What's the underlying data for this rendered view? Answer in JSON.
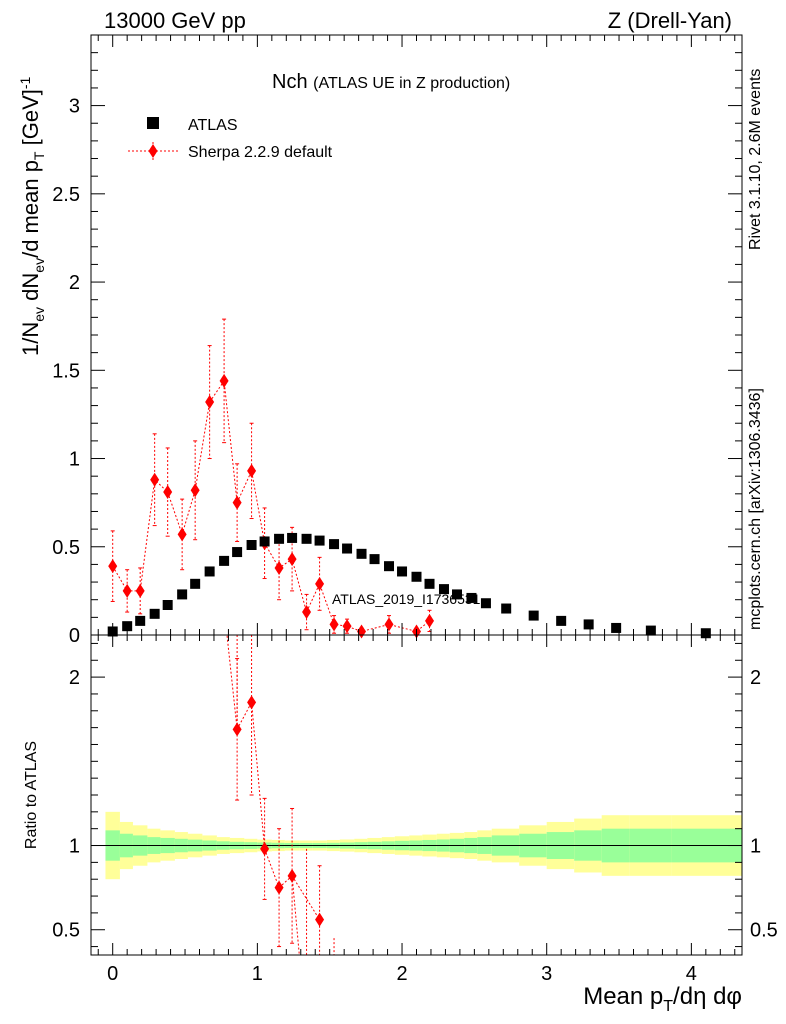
{
  "header": {
    "energy": "13000 GeV pp",
    "process": "Z (Drell-Yan)",
    "title_main": "Nch",
    "title_sub": "(ATLAS UE in Z production)",
    "watermark": "ATLAS_2019_I1736531",
    "side_rivet": "Rivet 3.1.10,  2.6M events",
    "side_mcplots": "mcplots.cern.ch [arXiv:1306.3436]"
  },
  "legend": {
    "atlas_label": "ATLAS",
    "sherpa_label": "Sherpa 2.2.9 default"
  },
  "colors": {
    "data": "#000000",
    "mc": "#ff0000",
    "band_inner": "#99ff99",
    "band_outer": "#ffff99"
  },
  "chart_data": {
    "type": "scatter",
    "xlabel": "Mean p_T/dη dφ",
    "xlim": [
      -0.15,
      4.35
    ],
    "x_ticks": [
      "0",
      "1",
      "2",
      "3",
      "4"
    ],
    "x_tick_values": [
      0,
      1,
      2,
      3,
      4
    ],
    "main": {
      "ylabel": "1/N_ev dN_ev/d mean p_T [GeV]^-1",
      "ylim": [
        0,
        3.4
      ],
      "y_ticks": [
        "0",
        "0.5",
        "1",
        "1.5",
        "2",
        "2.5",
        "3"
      ],
      "y_tick_values": [
        0,
        0.5,
        1,
        1.5,
        2,
        2.5,
        3
      ],
      "series": [
        {
          "name": "ATLAS",
          "x": [
            0.0,
            0.1,
            0.19,
            0.29,
            0.38,
            0.48,
            0.57,
            0.67,
            0.77,
            0.86,
            0.96,
            1.05,
            1.15,
            1.24,
            1.34,
            1.43,
            1.53,
            1.62,
            1.72,
            1.81,
            1.91,
            2.0,
            2.1,
            2.19,
            2.29,
            2.38,
            2.48,
            2.58,
            2.72,
            2.91,
            3.1,
            3.29,
            3.48,
            3.72,
            4.1
          ],
          "y": [
            0.02,
            0.05,
            0.08,
            0.12,
            0.17,
            0.23,
            0.29,
            0.36,
            0.42,
            0.47,
            0.51,
            0.53,
            0.545,
            0.55,
            0.545,
            0.535,
            0.515,
            0.49,
            0.46,
            0.43,
            0.39,
            0.36,
            0.33,
            0.29,
            0.26,
            0.23,
            0.21,
            0.18,
            0.15,
            0.11,
            0.08,
            0.06,
            0.04,
            0.025,
            0.01
          ]
        },
        {
          "name": "Sherpa 2.2.9 default",
          "x": [
            0.0,
            0.1,
            0.19,
            0.29,
            0.38,
            0.48,
            0.57,
            0.67,
            0.77,
            0.86,
            0.96,
            1.05,
            1.15,
            1.24,
            1.34,
            1.43,
            1.53,
            1.62,
            1.72,
            1.91,
            2.1,
            2.19
          ],
          "y": [
            0.39,
            0.25,
            0.25,
            0.88,
            0.81,
            0.57,
            0.82,
            1.32,
            1.44,
            0.75,
            0.93,
            0.52,
            0.38,
            0.43,
            0.13,
            0.29,
            0.06,
            0.05,
            0.02,
            0.06,
            0.02,
            0.08
          ],
          "yerr": [
            0.2,
            0.12,
            0.13,
            0.26,
            0.25,
            0.2,
            0.28,
            0.32,
            0.35,
            0.22,
            0.27,
            0.2,
            0.18,
            0.18,
            0.1,
            0.15,
            0.05,
            0.04,
            0.02,
            0.05,
            0.02,
            0.06
          ]
        }
      ]
    },
    "ratio": {
      "ylabel": "Ratio to ATLAS",
      "ylim": [
        0.35,
        2.25
      ],
      "y_ticks": [
        "0.5",
        "1",
        "2"
      ],
      "y_tick_values": [
        0.5,
        1,
        2
      ],
      "reference_line": 1,
      "band": {
        "edges": [
          -0.05,
          0.05,
          0.14,
          0.24,
          0.33,
          0.43,
          0.52,
          0.62,
          0.72,
          0.81,
          0.91,
          1.0,
          1.1,
          1.19,
          1.29,
          1.38,
          1.48,
          1.57,
          1.67,
          1.76,
          1.86,
          1.95,
          2.05,
          2.14,
          2.24,
          2.33,
          2.43,
          2.52,
          2.62,
          2.81,
          3.0,
          3.19,
          3.38,
          3.57,
          3.86,
          4.35
        ],
        "inner": [
          0.09,
          0.07,
          0.06,
          0.05,
          0.045,
          0.04,
          0.035,
          0.03,
          0.025,
          0.022,
          0.02,
          0.018,
          0.016,
          0.015,
          0.015,
          0.015,
          0.016,
          0.018,
          0.02,
          0.022,
          0.025,
          0.028,
          0.03,
          0.033,
          0.036,
          0.04,
          0.045,
          0.05,
          0.06,
          0.07,
          0.08,
          0.09,
          0.1,
          0.1,
          0.1
        ],
        "outer": [
          0.2,
          0.14,
          0.12,
          0.1,
          0.09,
          0.08,
          0.07,
          0.06,
          0.05,
          0.045,
          0.04,
          0.035,
          0.033,
          0.03,
          0.03,
          0.03,
          0.033,
          0.036,
          0.04,
          0.045,
          0.05,
          0.055,
          0.06,
          0.065,
          0.07,
          0.075,
          0.08,
          0.09,
          0.1,
          0.12,
          0.14,
          0.16,
          0.18,
          0.18,
          0.18
        ]
      },
      "series": [
        {
          "name": "Sherpa 2.2.9 default",
          "x": [
            0.86,
            0.96,
            1.05,
            1.15,
            1.24,
            1.43
          ],
          "y": [
            1.69,
            1.85,
            0.98,
            0.75,
            0.82,
            0.56
          ],
          "yerr": [
            0.42,
            0.55,
            0.3,
            0.35,
            0.4,
            0.32
          ]
        }
      ],
      "partial_points": [
        {
          "x": 0.86,
          "y_low": 1.69,
          "y_high": 2.25
        },
        {
          "x": 1.34,
          "y_low": 0.35,
          "y_high": 0.98
        },
        {
          "x": 1.53,
          "y_low": 0.35,
          "y_high": 0.45
        }
      ]
    }
  }
}
